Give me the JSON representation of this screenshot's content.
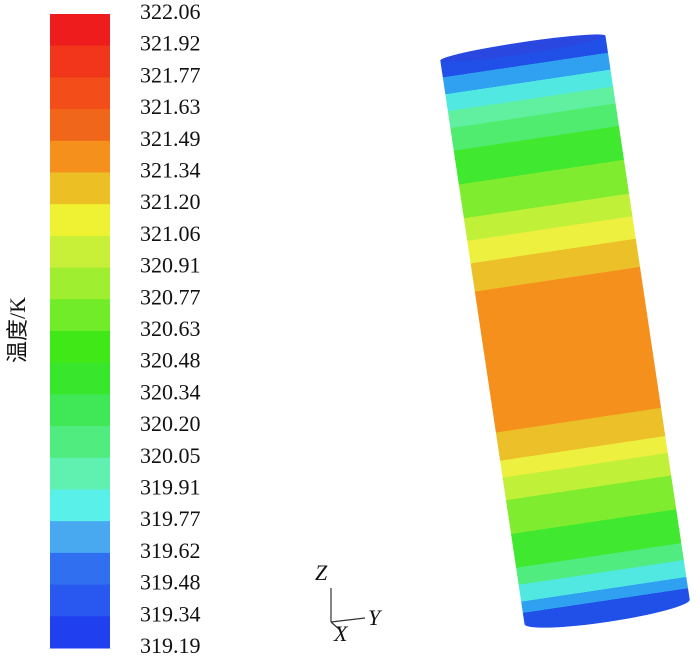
{
  "colorbar": {
    "label": "温度/K",
    "labels": [
      "322.06",
      "321.92",
      "321.77",
      "321.63",
      "321.49",
      "321.34",
      "321.20",
      "321.06",
      "320.91",
      "320.77",
      "320.63",
      "320.48",
      "320.34",
      "320.20",
      "320.05",
      "319.91",
      "319.77",
      "319.62",
      "319.48",
      "319.34",
      "319.19"
    ],
    "colors": [
      "#ee1c1c",
      "#f2361c",
      "#f34e1a",
      "#f0661a",
      "#f5901c",
      "#ecc024",
      "#eef232",
      "#c8f038",
      "#a0ee30",
      "#70ec28",
      "#40e818",
      "#38e62c",
      "#40e858",
      "#50ec80",
      "#60f0b0",
      "#58f0e8",
      "#48a8f0",
      "#3070f0",
      "#2858f0",
      "#2040f0"
    ]
  },
  "triad": {
    "z": "Z",
    "y": "Y",
    "x": "X"
  }
}
